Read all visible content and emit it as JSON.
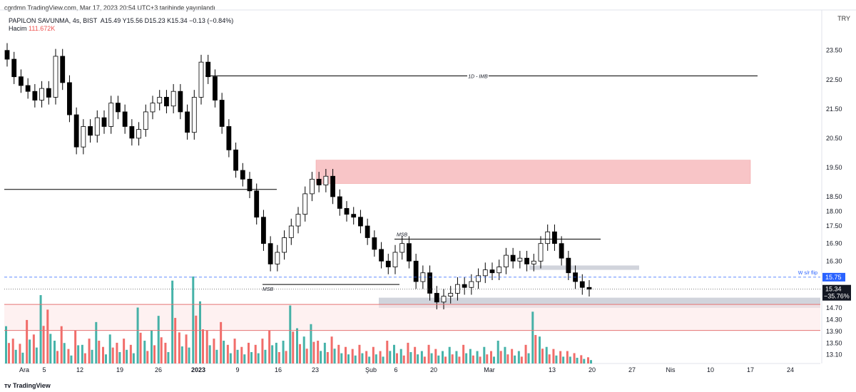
{
  "header": {
    "published": "cgrdmn TradingView.com, Mar 17, 2023 20:54 UTC+3 tarihinde yayınlandı",
    "currency": "TRY",
    "symbol": "PAPILON SAVUNMA, 4s, BIST",
    "ohlc": "A15.49  Y15.56  D15.23  K15.34  −0.13 (−0.84%)",
    "volume_label": "Hacim",
    "volume_value": "111.672K"
  },
  "footer": {
    "brand": "TradingView"
  },
  "colors": {
    "up": "#26a69a",
    "down": "#ef5350",
    "zone_red": "#f8c5c7",
    "zone_gray": "#d1d4dc",
    "flip": "#2962ff"
  },
  "chart_data": {
    "type": "candlestick",
    "title": "PAPILON SAVUNMA, 4s, BIST",
    "ylim": [
      12.8,
      24.2
    ],
    "y_ticks": [
      23.5,
      22.5,
      21.5,
      20.5,
      19.5,
      18.5,
      18.0,
      17.5,
      16.9,
      16.3,
      15.75,
      15.34,
      14.7,
      14.3,
      13.9,
      13.5,
      13.1
    ],
    "y_tick_labels": [
      "23.50",
      "22.50",
      "21.50",
      "20.50",
      "19.50",
      "18.50",
      "18.00",
      "17.50",
      "16.90",
      "16.30",
      "15.75",
      "15.34",
      "14.70",
      "14.30",
      "13.90",
      "13.50",
      "13.10"
    ],
    "x_labels": [
      "Ara",
      "5",
      "12",
      "19",
      "26",
      "2023",
      "9",
      "16",
      "23",
      "Şub",
      "6",
      "20",
      "Mar",
      "13",
      "20",
      "27",
      "Nis",
      "10",
      "17",
      "24"
    ],
    "close_path": [
      [
        0,
        23.2
      ],
      [
        1,
        22.6
      ],
      [
        2,
        22.3
      ],
      [
        3,
        22.1
      ],
      [
        4,
        21.8
      ],
      [
        5,
        22.2
      ],
      [
        6,
        21.9
      ],
      [
        7,
        23.3
      ],
      [
        8,
        22.4
      ],
      [
        9,
        21.3
      ],
      [
        10,
        20.2
      ],
      [
        11,
        20.9
      ],
      [
        12,
        20.6
      ],
      [
        13,
        21.2
      ],
      [
        14,
        20.9
      ],
      [
        15,
        21.7
      ],
      [
        16,
        21.4
      ],
      [
        17,
        20.9
      ],
      [
        18,
        20.5
      ],
      [
        19,
        20.8
      ],
      [
        20,
        21.4
      ],
      [
        21,
        21.7
      ],
      [
        22,
        21.9
      ],
      [
        23,
        21.6
      ],
      [
        24,
        22.1
      ],
      [
        25,
        21.4
      ],
      [
        26,
        20.7
      ],
      [
        27,
        21.9
      ],
      [
        28,
        23.1
      ],
      [
        29,
        22.6
      ],
      [
        30,
        21.8
      ],
      [
        31,
        20.9
      ],
      [
        32,
        20.1
      ],
      [
        33,
        19.4
      ],
      [
        34,
        19.1
      ],
      [
        35,
        18.7
      ],
      [
        36,
        17.8
      ],
      [
        37,
        16.9
      ],
      [
        38,
        16.2
      ],
      [
        39,
        16.6
      ],
      [
        40,
        17.1
      ],
      [
        41,
        17.5
      ],
      [
        42,
        17.9
      ],
      [
        43,
        18.6
      ],
      [
        44,
        19.1
      ],
      [
        45,
        18.9
      ],
      [
        46,
        19.2
      ],
      [
        47,
        18.5
      ],
      [
        48,
        18.1
      ],
      [
        49,
        17.9
      ],
      [
        50,
        17.8
      ],
      [
        51,
        17.5
      ],
      [
        52,
        17.1
      ],
      [
        53,
        16.7
      ],
      [
        54,
        16.3
      ],
      [
        55,
        16.1
      ],
      [
        56,
        16.6
      ],
      [
        57,
        16.9
      ],
      [
        58,
        16.3
      ],
      [
        59,
        15.6
      ],
      [
        60,
        15.9
      ],
      [
        61,
        15.2
      ],
      [
        62,
        14.9
      ],
      [
        63,
        15.1
      ],
      [
        64,
        15.2
      ],
      [
        65,
        15.5
      ],
      [
        66,
        15.4
      ],
      [
        67,
        15.6
      ],
      [
        68,
        15.8
      ],
      [
        69,
        16.0
      ],
      [
        70,
        15.9
      ],
      [
        71,
        16.1
      ],
      [
        72,
        16.5
      ],
      [
        73,
        16.3
      ],
      [
        74,
        16.4
      ],
      [
        75,
        16.2
      ],
      [
        76,
        16.3
      ],
      [
        77,
        16.9
      ],
      [
        78,
        17.3
      ],
      [
        79,
        16.9
      ],
      [
        80,
        16.4
      ],
      [
        81,
        15.9
      ],
      [
        82,
        15.6
      ],
      [
        83,
        15.4
      ],
      [
        84,
        15.34
      ]
    ],
    "volume_bars": [
      [
        0,
        180
      ],
      [
        1,
        120
      ],
      [
        2,
        95
      ],
      [
        3,
        210
      ],
      [
        4,
        140
      ],
      [
        5,
        330
      ],
      [
        6,
        260
      ],
      [
        7,
        110
      ],
      [
        8,
        180
      ],
      [
        9,
        70
      ],
      [
        10,
        160
      ],
      [
        11,
        90
      ],
      [
        12,
        120
      ],
      [
        13,
        200
      ],
      [
        14,
        80
      ],
      [
        15,
        140
      ],
      [
        16,
        100
      ],
      [
        17,
        120
      ],
      [
        18,
        90
      ],
      [
        19,
        270
      ],
      [
        20,
        110
      ],
      [
        21,
        160
      ],
      [
        22,
        230
      ],
      [
        23,
        100
      ],
      [
        24,
        400
      ],
      [
        25,
        150
      ],
      [
        26,
        140
      ],
      [
        27,
        420
      ],
      [
        28,
        300
      ],
      [
        29,
        160
      ],
      [
        30,
        120
      ],
      [
        31,
        200
      ],
      [
        32,
        90
      ],
      [
        33,
        120
      ],
      [
        34,
        80
      ],
      [
        35,
        100
      ],
      [
        36,
        90
      ],
      [
        37,
        120
      ],
      [
        38,
        160
      ],
      [
        39,
        100
      ],
      [
        40,
        110
      ],
      [
        41,
        280
      ],
      [
        42,
        170
      ],
      [
        43,
        130
      ],
      [
        44,
        190
      ],
      [
        45,
        110
      ],
      [
        46,
        100
      ],
      [
        47,
        130
      ],
      [
        48,
        90
      ],
      [
        49,
        80
      ],
      [
        50,
        70
      ],
      [
        51,
        90
      ],
      [
        52,
        60
      ],
      [
        53,
        80
      ],
      [
        54,
        60
      ],
      [
        55,
        110
      ],
      [
        56,
        90
      ],
      [
        57,
        70
      ],
      [
        58,
        100
      ],
      [
        59,
        80
      ],
      [
        60,
        60
      ],
      [
        61,
        90
      ],
      [
        62,
        70
      ],
      [
        63,
        60
      ],
      [
        64,
        80
      ],
      [
        65,
        60
      ],
      [
        66,
        90
      ],
      [
        67,
        70
      ],
      [
        68,
        60
      ],
      [
        69,
        80
      ],
      [
        70,
        60
      ],
      [
        71,
        110
      ],
      [
        72,
        80
      ],
      [
        73,
        70
      ],
      [
        74,
        60
      ],
      [
        75,
        90
      ],
      [
        76,
        250
      ],
      [
        77,
        130
      ],
      [
        78,
        80
      ],
      [
        79,
        70
      ],
      [
        80,
        60
      ],
      [
        81,
        60
      ],
      [
        82,
        50
      ],
      [
        83,
        40
      ],
      [
        84,
        30
      ]
    ],
    "levels": {
      "imb_1d": 22.63,
      "left_hline": 18.75,
      "msb_upper": 17.05,
      "msb_lower": 15.5,
      "flip": 15.75,
      "last": 15.34,
      "red_line_1": 14.82,
      "red_line_2": 13.93
    },
    "zones": {
      "red": [
        19.75,
        18.95
      ],
      "gray_small": [
        16.15,
        16.0
      ],
      "gray_big": [
        15.05,
        14.7
      ]
    },
    "annotations": {
      "imb": "1D - IMB",
      "msb_upper": "MSB",
      "msb_lower": "MSB",
      "flip": "W s/r flip"
    },
    "price_tags": {
      "flip": "15.75",
      "last": "15.34",
      "last_change": "−35.76%"
    }
  }
}
